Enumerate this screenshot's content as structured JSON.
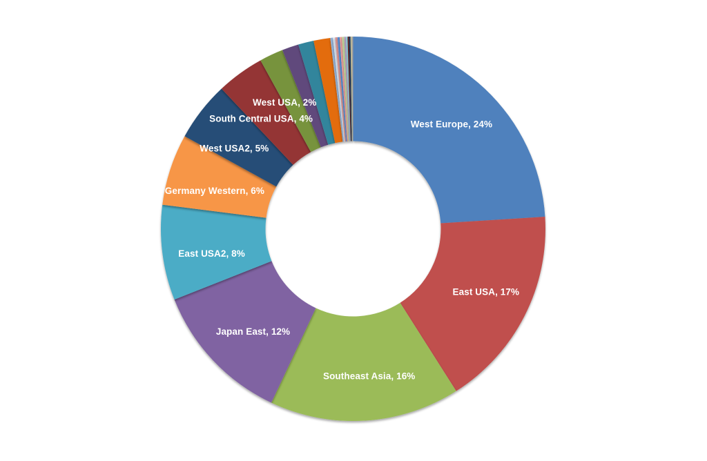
{
  "page": {
    "background": "#ffffff"
  },
  "chart_data": {
    "type": "pie",
    "subtype": "donut",
    "title": "",
    "legend": "none",
    "data_labels": "inside, white bold, format: 'Name, N%'",
    "start_angle_deg": 0,
    "direction": "clockwise",
    "hole_ratio": 0.456,
    "label_color": "#FFFFFF",
    "slices": [
      {
        "name": "West Europe",
        "value": 24,
        "color": "#4F81BD",
        "label": "West Europe, 24%",
        "label_angle": 43.2,
        "label_radius": 208
      },
      {
        "name": "East USA",
        "value": 17,
        "color": "#C0504D",
        "label": "East USA, 17%",
        "label_angle": 115.5,
        "label_radius": 213
      },
      {
        "name": "Southeast Asia",
        "value": 16,
        "color": "#9BBB59",
        "label": "Southeast Asia, 16%",
        "label_angle": 173.8,
        "label_radius": 215
      },
      {
        "name": "Japan East",
        "value": 12,
        "color": "#8064A2",
        "label": "Japan East, 12%",
        "label_angle": 224.2,
        "label_radius": 208
      },
      {
        "name": "East USA2",
        "value": 8,
        "color": "#4BACC6",
        "label": "East USA2, 8%",
        "label_angle": 260.1,
        "label_radius": 208
      },
      {
        "name": "Germany Western",
        "value": 6,
        "color": "#F79646",
        "label": "Germany Western, 6%",
        "label_angle": 285.3,
        "label_radius": 208
      },
      {
        "name": "West USA2",
        "value": 5,
        "color": "#264D77",
        "label": "West USA2, 5%",
        "label_angle": 304.1,
        "label_radius": 208
      },
      {
        "name": "South Central USA",
        "value": 4,
        "color": "#943634",
        "label": "South Central USA, 4%",
        "label_angle": 320.1,
        "label_radius": 208
      },
      {
        "name": "West USA",
        "value": 2,
        "color": "#77933C",
        "label": "West USA, 2%",
        "label_angle": 331.5,
        "label_radius": 208
      },
      {
        "name": "",
        "value": 1.4,
        "color": "#604A7B",
        "label": ""
      },
      {
        "name": "",
        "value": 1.3,
        "color": "#31859C",
        "label": ""
      },
      {
        "name": "",
        "value": 1.4,
        "color": "#E36C0A",
        "label": ""
      },
      {
        "name": "",
        "value": 0.22,
        "color": "#95B3D7",
        "label": ""
      },
      {
        "name": "",
        "value": 0.18,
        "color": "#DCE6F1",
        "label": ""
      },
      {
        "name": "",
        "value": 0.2,
        "color": "#D99694",
        "label": ""
      },
      {
        "name": "",
        "value": 0.18,
        "color": "#558ED5",
        "label": ""
      },
      {
        "name": "",
        "value": 0.2,
        "color": "#E6A09D",
        "label": ""
      },
      {
        "name": "",
        "value": 0.18,
        "color": "#C2D69B",
        "label": ""
      },
      {
        "name": "",
        "value": 0.14,
        "color": "#B2A1C7",
        "label": ""
      },
      {
        "name": "",
        "value": 0.14,
        "color": "#92CDDC",
        "label": ""
      },
      {
        "name": "",
        "value": 0.12,
        "color": "#632523",
        "label": ""
      },
      {
        "name": "",
        "value": 0.12,
        "color": "#17375E",
        "label": ""
      },
      {
        "name": "",
        "value": 0.12,
        "color": "#C4BD97",
        "label": ""
      },
      {
        "name": "",
        "value": 0.1,
        "color": "#A5A5A5",
        "label": ""
      }
    ]
  }
}
